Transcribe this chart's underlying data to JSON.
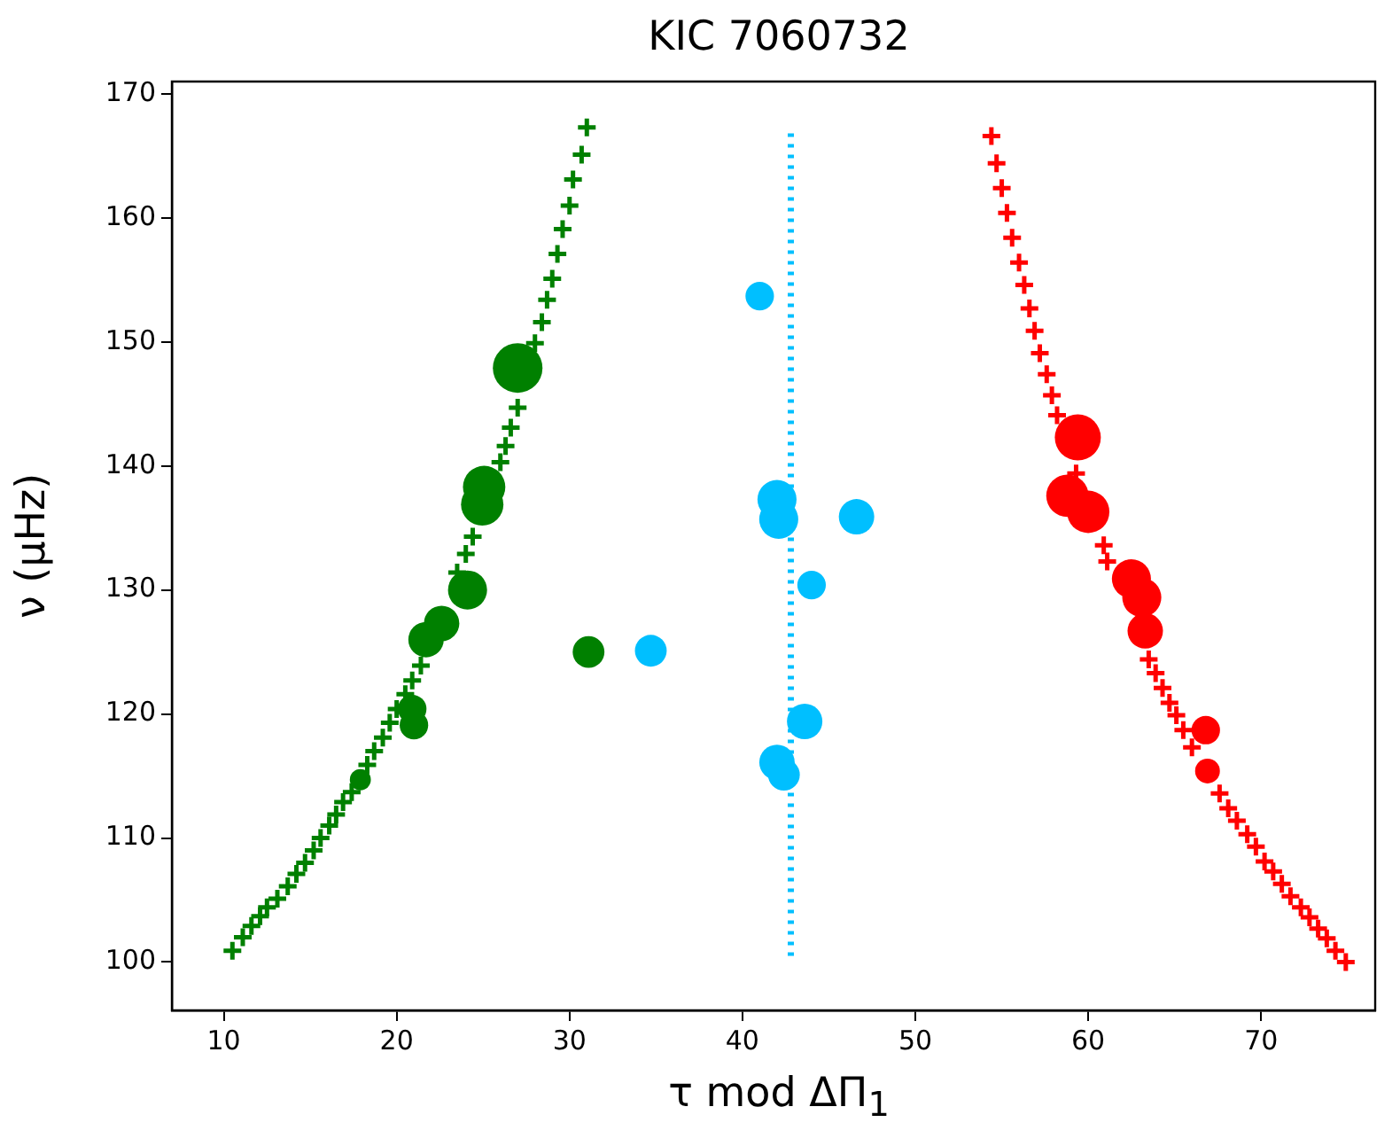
{
  "chart_data": {
    "type": "scatter",
    "title": "KIC 7060732",
    "xlabel": "τ mod ΔΠ$_{1}$",
    "ylabel": "ν (μHz)",
    "xlim": [
      7,
      76.6
    ],
    "ylim": [
      96.1,
      171
    ],
    "xticks": [
      10,
      20,
      30,
      40,
      50,
      60,
      70
    ],
    "yticks": [
      100,
      110,
      120,
      130,
      140,
      150,
      160,
      170
    ],
    "grid": false,
    "legend": false,
    "series": [
      {
        "type": "scatter",
        "marker": "cross",
        "color": "#008000",
        "x": [
          31.0,
          30.7,
          30.2,
          30.0,
          29.6,
          29.3,
          29.0,
          28.7,
          28.4,
          28.0,
          27.3,
          27.0,
          26.6,
          26.3,
          26.0,
          24.4,
          24.0,
          23.5,
          23.1,
          21.4,
          20.9,
          20.5,
          20.0,
          19.6,
          19.2,
          18.7,
          18.3,
          17.4,
          16.9,
          16.5,
          16.1,
          15.6,
          15.2,
          14.7,
          14.2,
          13.7,
          13.1,
          12.5,
          12.1,
          11.6,
          11.1,
          10.5
        ],
        "values": [
          167.3,
          165.1,
          163.1,
          161.0,
          159.1,
          157.1,
          155.1,
          153.4,
          151.6,
          149.9,
          null,
          144.7,
          143.1,
          141.6,
          140.3,
          134.3,
          132.9,
          131.4,
          null,
          123.9,
          122.7,
          121.6,
          120.4,
          119.3,
          118.1,
          117.0,
          115.9,
          113.7,
          112.9,
          111.9,
          111.0,
          110.0,
          109.0,
          108.0,
          107.1,
          106.1,
          105.1,
          104.4,
          103.7,
          102.9,
          102.0,
          100.9
        ]
      },
      {
        "type": "bubble",
        "color": "#008000",
        "x": [
          27.0,
          25.06,
          24.95,
          24.1,
          22.6,
          21.7,
          20.9,
          21.0,
          17.9,
          31.1
        ],
        "values": [
          147.9,
          138.3,
          136.9,
          130.0,
          127.3,
          126.0,
          120.4,
          119.1,
          114.7,
          125.0
        ],
        "sizes": [
          1,
          0.73,
          0.73,
          0.62,
          0.51,
          0.51,
          0.33,
          0.33,
          0.18,
          0.41
        ]
      },
      {
        "type": "line",
        "marker": "none",
        "line_style": "dotted",
        "color": "#00bfff",
        "x": [
          42.8,
          42.8
        ],
        "values": [
          100.5,
          167.1
        ]
      },
      {
        "type": "bubble",
        "color": "#00bfff",
        "x": [
          41.0,
          42.0,
          42.1,
          46.6,
          44.0,
          34.7,
          43.6,
          42.0,
          42.4
        ],
        "values": [
          153.7,
          137.3,
          135.7,
          135.9,
          130.4,
          125.1,
          119.4,
          116.1,
          115.1
        ],
        "sizes": [
          0.33,
          0.62,
          0.62,
          0.51,
          0.33,
          0.41,
          0.51,
          0.51,
          0.41
        ]
      },
      {
        "type": "scatter",
        "marker": "cross",
        "color": "#ff0000",
        "x": [
          54.4,
          54.7,
          55.0,
          55.3,
          55.6,
          56.0,
          56.3,
          56.6,
          56.9,
          57.2,
          57.6,
          57.9,
          58.2,
          59.3,
          60.9,
          61.1,
          63.5,
          63.9,
          64.3,
          64.7,
          65.1,
          65.5,
          66.0,
          67.6,
          68.1,
          68.6,
          69.2,
          69.7,
          70.2,
          70.7,
          71.2,
          71.7,
          72.3,
          72.8,
          73.3,
          73.8,
          74.3,
          74.9
        ],
        "values": [
          166.6,
          164.4,
          162.4,
          160.4,
          158.4,
          156.4,
          154.6,
          152.7,
          150.9,
          149.1,
          147.4,
          145.7,
          144.1,
          139.4,
          133.6,
          132.3,
          124.4,
          123.3,
          122.1,
          120.9,
          119.9,
          118.7,
          117.3,
          113.6,
          112.4,
          111.4,
          110.3,
          109.3,
          108.1,
          107.3,
          106.3,
          105.3,
          104.4,
          103.6,
          102.7,
          101.9,
          100.9,
          100.0
        ]
      },
      {
        "type": "bubble",
        "color": "#ff0000",
        "x": [
          59.4,
          58.8,
          60.0,
          62.5,
          63.1,
          63.3,
          66.8,
          66.9
        ],
        "values": [
          142.3,
          137.6,
          136.3,
          130.9,
          129.4,
          126.7,
          118.7,
          115.4
        ],
        "sizes": [
          0.86,
          0.73,
          0.73,
          0.62,
          0.62,
          0.51,
          0.33,
          0.25
        ]
      }
    ]
  }
}
